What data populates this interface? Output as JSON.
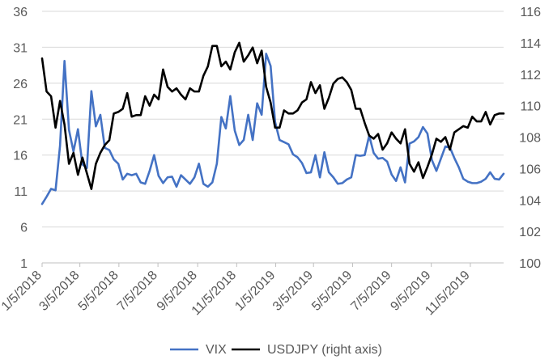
{
  "chart_data": {
    "type": "line",
    "title": "",
    "xlabel": "",
    "ylabel": "",
    "y2label": "",
    "grid": "horizontal",
    "legend_position": "bottom",
    "x_start": "2018-01-05",
    "x_end": "2019-12-27",
    "x_tick_labels": [
      "1/5/2018",
      "3/5/2018",
      "5/5/2018",
      "7/5/2018",
      "9/5/2018",
      "11/5/2018",
      "1/5/2019",
      "3/5/2019",
      "5/5/2019",
      "7/5/2019",
      "9/5/2019",
      "11/5/2019"
    ],
    "x_tick_dates": [
      "2018-01-05",
      "2018-03-05",
      "2018-05-05",
      "2018-07-05",
      "2018-09-05",
      "2018-11-05",
      "2019-01-05",
      "2019-03-05",
      "2019-05-05",
      "2019-07-05",
      "2019-09-05",
      "2019-11-05"
    ],
    "y_left": {
      "min": 1,
      "max": 36,
      "ticks": [
        "1",
        "6",
        "11",
        "16",
        "21",
        "26",
        "31",
        "36"
      ]
    },
    "y_right": {
      "min": 100,
      "max": 116,
      "ticks": [
        "100",
        "102",
        "104",
        "106",
        "108",
        "110",
        "112",
        "114",
        "116"
      ]
    },
    "series": [
      {
        "name": "VIX",
        "axis": "left",
        "color": "#4472C4",
        "values": [
          9.2,
          10.2,
          11.3,
          11.1,
          17.3,
          29.1,
          19.5,
          16.5,
          19.6,
          14.7,
          14.2,
          24.9,
          20.0,
          21.6,
          17.0,
          16.7,
          15.4,
          14.8,
          12.6,
          13.4,
          13.2,
          13.4,
          12.2,
          12.0,
          13.8,
          16.0,
          13.1,
          12.1,
          12.9,
          13.0,
          11.6,
          13.2,
          12.6,
          12.0,
          12.9,
          14.8,
          12.0,
          11.6,
          12.2,
          14.8,
          21.3,
          19.7,
          24.2,
          19.4,
          17.4,
          18.1,
          21.6,
          18.1,
          23.2,
          21.6,
          30.1,
          28.4,
          20.6,
          18.1,
          17.8,
          17.5,
          16.1,
          15.7,
          14.9,
          13.5,
          13.6,
          16.0,
          12.9,
          16.4,
          13.6,
          12.9,
          12.0,
          12.1,
          12.6,
          12.9,
          16.0,
          15.9,
          16.0,
          18.7,
          16.3,
          15.5,
          15.6,
          15.1,
          13.3,
          12.4,
          14.3,
          12.2,
          17.6,
          17.9,
          18.5,
          19.9,
          19.0,
          15.3,
          13.8,
          15.5,
          17.2,
          17.1,
          15.6,
          14.3,
          12.7,
          12.3,
          12.1,
          12.1,
          12.3,
          12.7,
          13.6,
          12.7,
          12.6,
          13.4
        ]
      },
      {
        "name": "USDJPY (right axis)",
        "axis": "right",
        "color": "#000000",
        "values": [
          113.0,
          110.9,
          110.6,
          108.6,
          110.3,
          108.8,
          106.3,
          107.0,
          105.6,
          106.7,
          105.7,
          104.7,
          106.3,
          107.0,
          107.5,
          107.8,
          109.5,
          109.6,
          109.8,
          110.8,
          109.3,
          109.4,
          109.4,
          110.6,
          110.0,
          110.7,
          110.4,
          112.3,
          111.2,
          110.9,
          111.1,
          110.7,
          110.4,
          111.1,
          110.9,
          110.9,
          111.9,
          112.5,
          113.8,
          113.8,
          112.5,
          112.8,
          112.3,
          113.4,
          114.0,
          112.8,
          113.2,
          113.7,
          112.7,
          113.5,
          111.2,
          110.2,
          108.6,
          108.6,
          109.7,
          109.5,
          109.5,
          109.7,
          110.2,
          110.4,
          111.5,
          110.8,
          111.3,
          109.8,
          110.5,
          111.4,
          111.7,
          111.8,
          111.5,
          111.0,
          109.8,
          109.8,
          108.9,
          108.1,
          107.9,
          108.2,
          107.2,
          107.6,
          108.3,
          107.9,
          107.6,
          108.5,
          106.3,
          105.8,
          106.4,
          105.4,
          106.1,
          106.9,
          107.9,
          107.7,
          108.0,
          107.2,
          108.3,
          108.5,
          108.7,
          108.6,
          109.3,
          109.0,
          109.0,
          109.6,
          108.8,
          109.4,
          109.5,
          109.5
        ]
      }
    ]
  }
}
